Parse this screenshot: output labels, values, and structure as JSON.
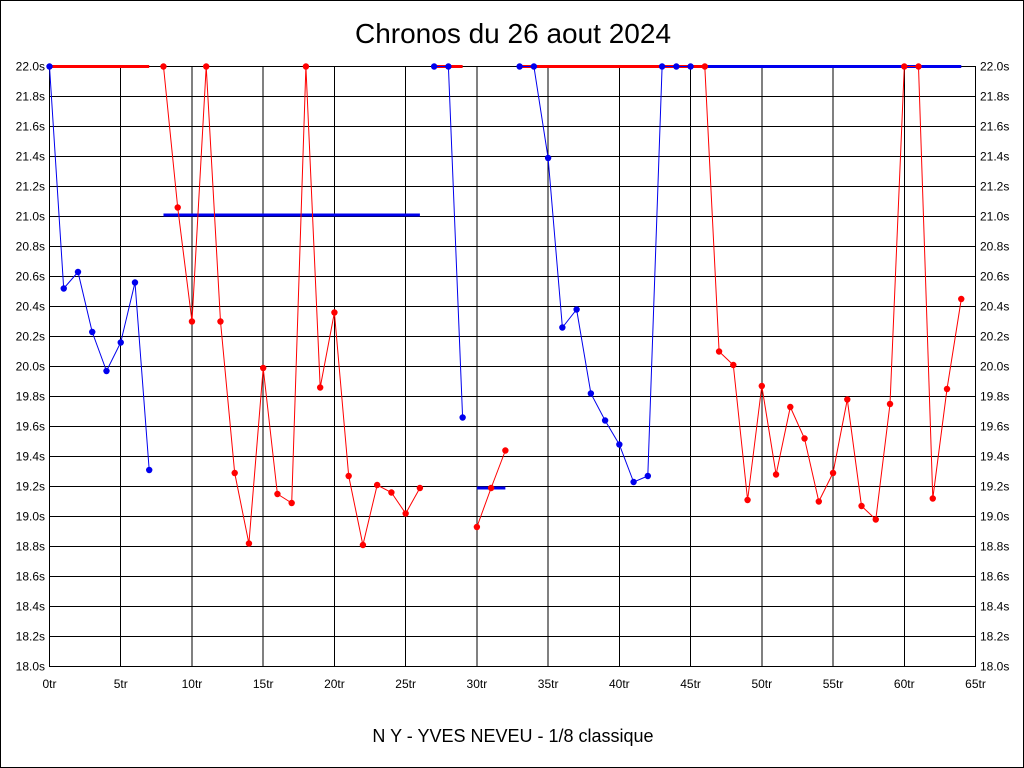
{
  "chart_data": {
    "type": "line",
    "title": "Chronos du 26 aout 2024",
    "subtitle": "N Y - YVES NEVEU - 1/8 classique",
    "xlim": [
      0,
      65
    ],
    "ylim": [
      18.0,
      22.0
    ],
    "grid": true,
    "x_ticks": [
      0,
      5,
      10,
      15,
      20,
      25,
      30,
      35,
      40,
      45,
      50,
      55,
      60,
      65
    ],
    "x_tick_labels": [
      "0tr",
      "5tr",
      "10tr",
      "15tr",
      "20tr",
      "25tr",
      "30tr",
      "35tr",
      "40tr",
      "45tr",
      "50tr",
      "55tr",
      "60tr",
      "65tr"
    ],
    "y_ticks": [
      18.0,
      18.2,
      18.4,
      18.6,
      18.8,
      19.0,
      19.2,
      19.4,
      19.6,
      19.8,
      20.0,
      20.2,
      20.4,
      20.6,
      20.8,
      21.0,
      21.2,
      21.4,
      21.6,
      21.8,
      22.0
    ],
    "y_tick_labels": [
      "18.0s",
      "18.2s",
      "18.4s",
      "18.6s",
      "18.8s",
      "19.0s",
      "19.2s",
      "19.4s",
      "19.6s",
      "19.8s",
      "20.0s",
      "20.2s",
      "20.4s",
      "20.6s",
      "20.8s",
      "21.0s",
      "21.2s",
      "21.4s",
      "21.6s",
      "21.8s",
      "22.0s"
    ],
    "colors": {
      "red": "#ff0000",
      "blue": "#0000ee"
    },
    "segments": [
      {
        "color": "blue",
        "points": [
          [
            0,
            22.0
          ],
          [
            1,
            20.52
          ],
          [
            2,
            20.63
          ],
          [
            3,
            20.23
          ],
          [
            4,
            19.97
          ],
          [
            5,
            20.16
          ],
          [
            6,
            20.56
          ],
          [
            7,
            19.31
          ]
        ]
      },
      {
        "color": "red",
        "points": [
          [
            8,
            22.0
          ],
          [
            9,
            21.06
          ],
          [
            10,
            20.3
          ],
          [
            11,
            22.0
          ],
          [
            12,
            20.3
          ],
          [
            13,
            19.29
          ],
          [
            14,
            18.82
          ],
          [
            15,
            19.99
          ],
          [
            16,
            19.15
          ],
          [
            17,
            19.09
          ],
          [
            18,
            22.0
          ],
          [
            19,
            19.86
          ],
          [
            20,
            20.36
          ],
          [
            21,
            19.27
          ],
          [
            22,
            18.81
          ],
          [
            23,
            19.21
          ],
          [
            24,
            19.16
          ],
          [
            25,
            19.02
          ],
          [
            26,
            19.19
          ]
        ]
      },
      {
        "color": "blue",
        "points": [
          [
            27,
            22.0
          ],
          [
            28,
            22.0
          ],
          [
            29,
            19.66
          ]
        ]
      },
      {
        "color": "red",
        "points": [
          [
            30,
            18.93
          ],
          [
            31,
            19.19
          ],
          [
            32,
            19.44
          ]
        ]
      },
      {
        "color": "blue",
        "points": [
          [
            33,
            22.0
          ],
          [
            34,
            22.0
          ],
          [
            35,
            21.39
          ],
          [
            36,
            20.26
          ],
          [
            37,
            20.38
          ],
          [
            38,
            19.82
          ],
          [
            39,
            19.64
          ],
          [
            40,
            19.48
          ],
          [
            41,
            19.23
          ],
          [
            42,
            19.27
          ],
          [
            43,
            22.0
          ],
          [
            44,
            22.0
          ],
          [
            45,
            22.0
          ]
        ]
      },
      {
        "color": "red",
        "points": [
          [
            46,
            22.0
          ],
          [
            47,
            20.1
          ],
          [
            48,
            20.01
          ],
          [
            49,
            19.11
          ],
          [
            50,
            19.87
          ],
          [
            51,
            19.28
          ],
          [
            52,
            19.73
          ],
          [
            53,
            19.52
          ],
          [
            54,
            19.1
          ],
          [
            55,
            19.29
          ],
          [
            56,
            19.78
          ],
          [
            57,
            19.07
          ],
          [
            58,
            18.98
          ],
          [
            59,
            19.75
          ],
          [
            60,
            22.0
          ],
          [
            61,
            22.0
          ],
          [
            62,
            19.12
          ],
          [
            63,
            19.85
          ],
          [
            64,
            20.45
          ]
        ]
      }
    ],
    "average_lines": [
      {
        "color": "red",
        "x": [
          0,
          7
        ],
        "y": 22.0
      },
      {
        "color": "red",
        "x": [
          27,
          29
        ],
        "y": 22.0
      },
      {
        "color": "red",
        "x": [
          33,
          46
        ],
        "y": 22.0
      },
      {
        "color": "blue",
        "x": [
          8,
          26
        ],
        "y": 21.01
      },
      {
        "color": "blue",
        "x": [
          30,
          32
        ],
        "y": 19.19
      },
      {
        "color": "blue",
        "x": [
          46,
          64
        ],
        "y": 22.0
      }
    ]
  }
}
